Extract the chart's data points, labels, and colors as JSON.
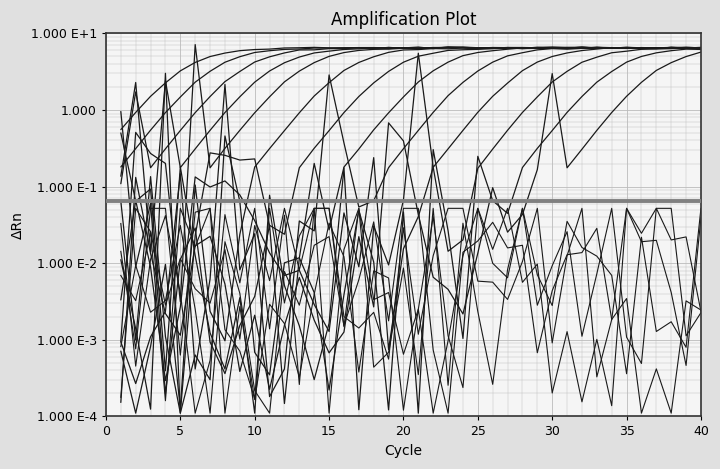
{
  "title": "Amplification Plot",
  "xlabel": "Cycle",
  "ylabel": "ΔRn",
  "xlim": [
    0,
    40
  ],
  "ylim_log": [
    0.0001,
    10.0
  ],
  "yticks": [
    0.0001,
    0.001,
    0.01,
    0.1,
    1.0,
    10.0
  ],
  "ytick_labels": [
    "1.000 E-4",
    "1.000 E-3",
    "1.000 E-2",
    "1.000 E-1",
    "1.000",
    "1.000 E+1"
  ],
  "xticks": [
    0,
    5,
    10,
    15,
    20,
    25,
    30,
    35,
    40
  ],
  "threshold": 0.065,
  "threshold_color": "#808080",
  "background_color": "#f5f5f5",
  "fig_facecolor": "#e0e0e0",
  "grid_color": "#bbbbbb",
  "curve_color": "#1a1a1a",
  "title_fontsize": 12,
  "axis_fontsize": 10,
  "curve_ct_values": [
    5,
    7,
    9,
    11,
    13,
    16,
    19,
    22,
    25,
    28,
    31,
    34,
    37
  ],
  "plateau": 6.5,
  "baseline": 0.005
}
